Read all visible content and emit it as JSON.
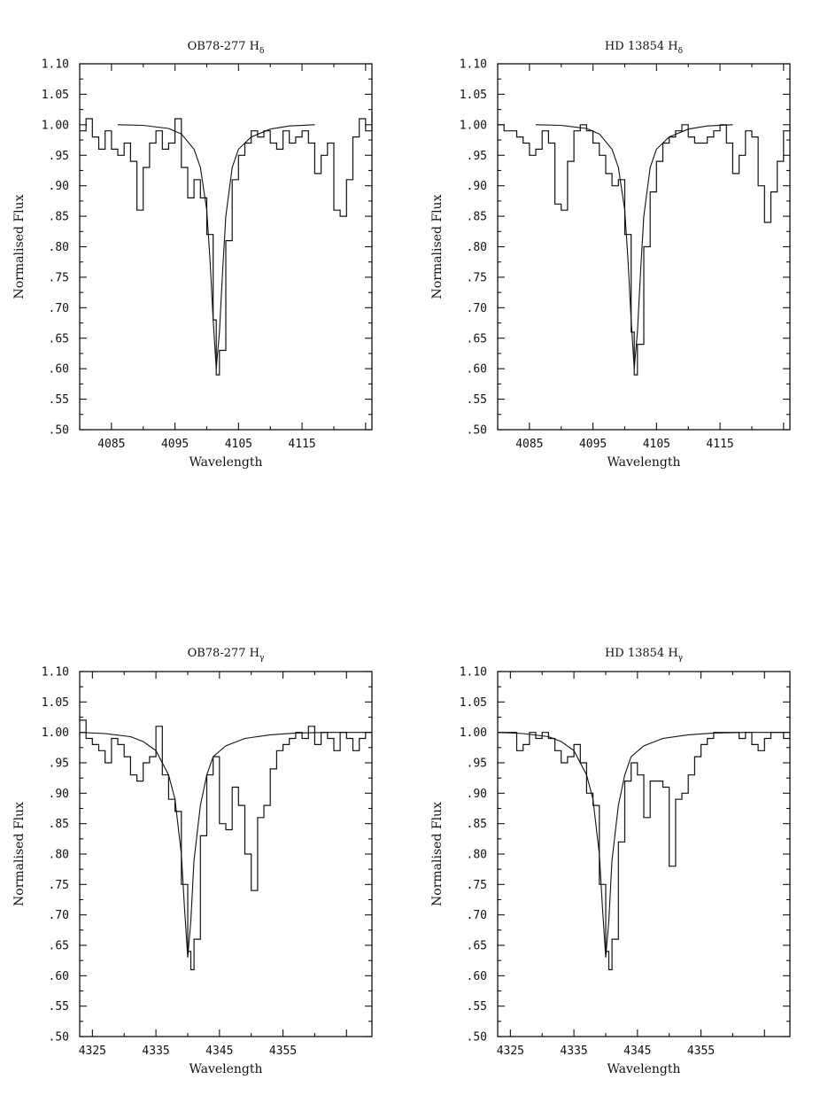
{
  "chart_data": [
    {
      "type": "line",
      "title": "OB78-277 H",
      "title_sub": "δ",
      "xlabel": "Wavelength",
      "ylabel": "Normalised Flux",
      "xlim": [
        4080,
        4126
      ],
      "ylim": [
        0.5,
        1.1
      ],
      "xticks": [
        4085,
        4095,
        4105,
        4115
      ],
      "ytick_labels": [
        "1.10",
        "1.05",
        "1.00",
        ".95",
        ".90",
        ".85",
        ".80",
        ".75",
        ".70",
        ".65",
        ".60",
        ".55",
        ".50"
      ],
      "grid": false,
      "series": [
        {
          "style": "histogram",
          "x": [
            4080,
            4081,
            4082,
            4083,
            4084,
            4085,
            4086,
            4087,
            4088,
            4089,
            4090,
            4091,
            4092,
            4093,
            4094,
            4095,
            4096,
            4097,
            4098,
            4099,
            4100,
            4101,
            4101.5,
            4102,
            4103,
            4104,
            4105,
            4106,
            4107,
            4108,
            4109,
            4110,
            4111,
            4112,
            4113,
            4114,
            4115,
            4116,
            4117,
            4118,
            4119,
            4120,
            4121,
            4122,
            4123,
            4124,
            4125,
            4126
          ],
          "y": [
            0.99,
            1.01,
            0.98,
            0.96,
            0.99,
            0.96,
            0.95,
            0.97,
            0.94,
            0.86,
            0.93,
            0.97,
            0.99,
            0.96,
            0.97,
            1.01,
            0.93,
            0.88,
            0.91,
            0.88,
            0.82,
            0.68,
            0.59,
            0.63,
            0.81,
            0.91,
            0.95,
            0.97,
            0.99,
            0.98,
            0.99,
            0.97,
            0.96,
            0.99,
            0.97,
            0.98,
            0.99,
            0.97,
            0.92,
            0.95,
            0.97,
            0.86,
            0.85,
            0.91,
            0.98,
            1.01,
            0.99,
            1.02
          ]
        },
        {
          "style": "smooth",
          "x": [
            4086,
            4090,
            4094,
            4096,
            4098,
            4099,
            4100,
            4100.5,
            4101,
            4101.5,
            4102,
            4102.5,
            4103,
            4104,
            4105,
            4107,
            4110,
            4113,
            4117
          ],
          "y": [
            1.0,
            0.999,
            0.994,
            0.985,
            0.96,
            0.93,
            0.86,
            0.78,
            0.68,
            0.6,
            0.66,
            0.76,
            0.85,
            0.93,
            0.96,
            0.98,
            0.993,
            0.998,
            1.0
          ]
        }
      ]
    },
    {
      "type": "line",
      "title": "HD 13854 H",
      "title_sub": "δ",
      "xlabel": "Wavelength",
      "ylabel": "Normalised Flux",
      "xlim": [
        4080,
        4126
      ],
      "ylim": [
        0.5,
        1.1
      ],
      "xticks": [
        4085,
        4095,
        4105,
        4115
      ],
      "ytick_labels": [
        "1.10",
        "1.05",
        "1.00",
        ".95",
        ".90",
        ".85",
        ".80",
        ".75",
        ".70",
        ".65",
        ".60",
        ".55",
        ".50"
      ],
      "grid": false,
      "series": [
        {
          "style": "histogram",
          "x": [
            4080,
            4081,
            4082,
            4083,
            4084,
            4085,
            4086,
            4087,
            4088,
            4089,
            4090,
            4091,
            4092,
            4093,
            4094,
            4095,
            4096,
            4097,
            4098,
            4099,
            4100,
            4101,
            4101.5,
            4102,
            4103,
            4104,
            4105,
            4106,
            4107,
            4108,
            4109,
            4110,
            4111,
            4112,
            4113,
            4114,
            4115,
            4116,
            4117,
            4118,
            4119,
            4120,
            4121,
            4122,
            4123,
            4124,
            4125,
            4126
          ],
          "y": [
            1.0,
            0.99,
            0.99,
            0.98,
            0.97,
            0.95,
            0.96,
            0.99,
            0.97,
            0.87,
            0.86,
            0.94,
            0.99,
            1.0,
            0.99,
            0.97,
            0.95,
            0.92,
            0.9,
            0.91,
            0.82,
            0.66,
            0.59,
            0.64,
            0.8,
            0.89,
            0.94,
            0.97,
            0.98,
            0.99,
            1.0,
            0.98,
            0.97,
            0.97,
            0.98,
            0.99,
            1.0,
            0.97,
            0.92,
            0.95,
            0.99,
            0.98,
            0.9,
            0.84,
            0.89,
            0.94,
            0.99,
            1.0
          ]
        },
        {
          "style": "smooth",
          "x": [
            4086,
            4090,
            4094,
            4096,
            4098,
            4099,
            4100,
            4100.5,
            4101,
            4101.5,
            4102,
            4102.5,
            4103,
            4104,
            4105,
            4107,
            4110,
            4113,
            4117
          ],
          "y": [
            1.0,
            0.999,
            0.994,
            0.985,
            0.96,
            0.93,
            0.86,
            0.78,
            0.68,
            0.6,
            0.66,
            0.76,
            0.85,
            0.93,
            0.96,
            0.98,
            0.993,
            0.998,
            1.0
          ]
        }
      ]
    },
    {
      "type": "line",
      "title": "OB78-277 H",
      "title_sub": "γ",
      "xlabel": "Wavelength",
      "ylabel": "Normalised Flux",
      "xlim": [
        4323,
        4369
      ],
      "ylim": [
        0.5,
        1.1
      ],
      "xticks": [
        4325,
        4335,
        4345,
        4355
      ],
      "ytick_labels": [
        "1.10",
        "1.05",
        "1.00",
        ".95",
        ".90",
        ".85",
        ".80",
        ".75",
        ".70",
        ".65",
        ".60",
        ".55",
        ".50"
      ],
      "grid": false,
      "series": [
        {
          "style": "histogram",
          "x": [
            4323,
            4324,
            4325,
            4326,
            4327,
            4328,
            4329,
            4330,
            4331,
            4332,
            4333,
            4334,
            4335,
            4336,
            4337,
            4338,
            4339,
            4340,
            4340.5,
            4341,
            4342,
            4343,
            4344,
            4345,
            4346,
            4347,
            4348,
            4349,
            4350,
            4351,
            4352,
            4353,
            4354,
            4355,
            4356,
            4357,
            4358,
            4359,
            4360,
            4361,
            4362,
            4363,
            4364,
            4365,
            4366,
            4367,
            4368,
            4369
          ],
          "y": [
            1.02,
            0.99,
            0.98,
            0.97,
            0.95,
            0.99,
            0.98,
            0.96,
            0.93,
            0.92,
            0.95,
            0.96,
            1.01,
            0.93,
            0.89,
            0.87,
            0.75,
            0.64,
            0.61,
            0.66,
            0.83,
            0.93,
            0.96,
            0.85,
            0.84,
            0.91,
            0.88,
            0.8,
            0.74,
            0.86,
            0.88,
            0.94,
            0.97,
            0.98,
            0.99,
            1.0,
            0.99,
            1.01,
            0.98,
            1.0,
            0.99,
            0.97,
            1.0,
            0.99,
            0.97,
            0.99,
            1.0,
            1.0
          ]
        },
        {
          "style": "smooth",
          "x": [
            4323,
            4327,
            4331,
            4333,
            4335,
            4337,
            4338,
            4339,
            4339.5,
            4340,
            4340.5,
            4341,
            4342,
            4343,
            4344,
            4346,
            4349,
            4353,
            4357,
            4362,
            4369
          ],
          "y": [
            1.0,
            0.998,
            0.993,
            0.985,
            0.97,
            0.93,
            0.89,
            0.8,
            0.71,
            0.63,
            0.69,
            0.79,
            0.88,
            0.93,
            0.96,
            0.978,
            0.99,
            0.996,
            0.999,
            1.0,
            1.0
          ]
        }
      ]
    },
    {
      "type": "line",
      "title": "HD 13854 H",
      "title_sub": "γ",
      "xlabel": "Wavelength",
      "ylabel": "Normalised Flux",
      "xlim": [
        4323,
        4369
      ],
      "ylim": [
        0.5,
        1.1
      ],
      "xticks": [
        4325,
        4335,
        4345,
        4355
      ],
      "ytick_labels": [
        "1.10",
        "1.05",
        "1.00",
        ".95",
        ".90",
        ".85",
        ".80",
        ".75",
        ".70",
        ".65",
        ".60",
        ".55",
        ".50"
      ],
      "grid": false,
      "series": [
        {
          "style": "histogram",
          "x": [
            4323,
            4324,
            4325,
            4326,
            4327,
            4328,
            4329,
            4330,
            4331,
            4332,
            4333,
            4334,
            4335,
            4336,
            4337,
            4338,
            4339,
            4340,
            4340.5,
            4341,
            4342,
            4343,
            4344,
            4345,
            4346,
            4347,
            4348,
            4349,
            4350,
            4351,
            4352,
            4353,
            4354,
            4355,
            4356,
            4357,
            4358,
            4359,
            4360,
            4361,
            4362,
            4363,
            4364,
            4365,
            4366,
            4367,
            4368,
            4369
          ],
          "y": [
            1.0,
            1.0,
            1.0,
            0.97,
            0.98,
            1.0,
            0.99,
            1.0,
            0.99,
            0.97,
            0.95,
            0.96,
            0.98,
            0.95,
            0.9,
            0.88,
            0.75,
            0.64,
            0.61,
            0.66,
            0.82,
            0.92,
            0.95,
            0.93,
            0.86,
            0.92,
            0.92,
            0.91,
            0.78,
            0.89,
            0.9,
            0.93,
            0.96,
            0.98,
            0.99,
            1.0,
            1.0,
            1.0,
            1.0,
            0.99,
            1.0,
            0.98,
            0.97,
            0.99,
            1.0,
            1.0,
            0.99,
            0.99
          ]
        },
        {
          "style": "smooth",
          "x": [
            4323,
            4327,
            4331,
            4333,
            4335,
            4337,
            4338,
            4339,
            4339.5,
            4340,
            4340.5,
            4341,
            4342,
            4343,
            4344,
            4346,
            4349,
            4353,
            4357,
            4362,
            4369
          ],
          "y": [
            1.0,
            0.998,
            0.993,
            0.985,
            0.97,
            0.93,
            0.89,
            0.8,
            0.71,
            0.63,
            0.69,
            0.79,
            0.88,
            0.93,
            0.96,
            0.978,
            0.99,
            0.996,
            0.999,
            1.0,
            1.0
          ]
        }
      ]
    }
  ]
}
